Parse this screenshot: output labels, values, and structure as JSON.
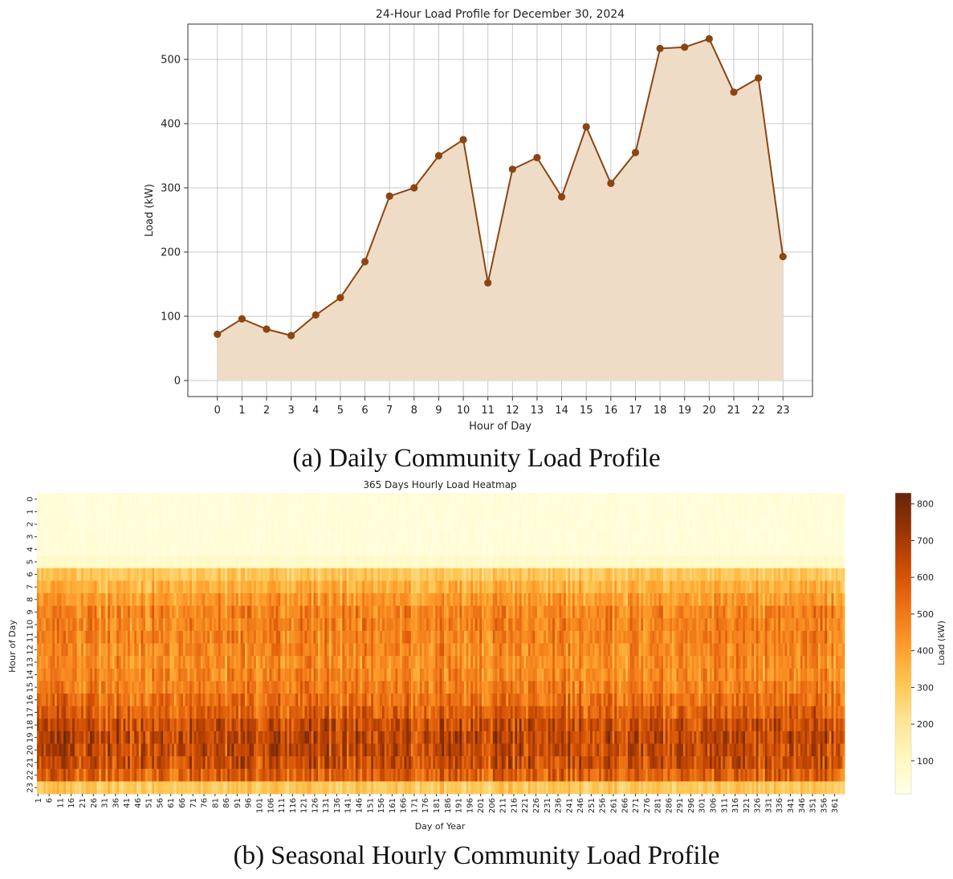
{
  "captions": {
    "a": "(a) Daily Community Load Profile",
    "b": "(b) Seasonal Hourly Community Load Profile"
  },
  "chart_data": [
    {
      "type": "area",
      "title": "24-Hour Load Profile for December 30, 2024",
      "xlabel": "Hour of Day",
      "ylabel": "Load (kW)",
      "x": [
        0,
        1,
        2,
        3,
        4,
        5,
        6,
        7,
        8,
        9,
        10,
        11,
        12,
        13,
        14,
        15,
        16,
        17,
        18,
        19,
        20,
        21,
        22,
        23
      ],
      "values": [
        72,
        96,
        80,
        70,
        102,
        129,
        185,
        287,
        300,
        350,
        375,
        152,
        329,
        347,
        286,
        395,
        307,
        355,
        517,
        519,
        532,
        449,
        471,
        193
      ],
      "yticks": [
        0,
        100,
        200,
        300,
        400,
        500
      ],
      "ylim": [
        -25,
        555
      ],
      "xlim": [
        -1.2,
        24.2
      ],
      "grid": true,
      "colors": {
        "line": "#8b4513",
        "fill": "#efdcc7",
        "marker": "#8b4513"
      }
    },
    {
      "type": "heatmap",
      "title": "365 Days Hourly Load Heatmap",
      "xlabel": "Day of Year",
      "ylabel": "Hour of Day",
      "days": 365,
      "hours": [
        0,
        1,
        2,
        3,
        4,
        5,
        6,
        7,
        8,
        9,
        10,
        11,
        12,
        13,
        14,
        15,
        16,
        17,
        18,
        19,
        20,
        21,
        22,
        23
      ],
      "xticks": [
        1,
        6,
        11,
        16,
        21,
        26,
        31,
        36,
        41,
        46,
        51,
        56,
        61,
        66,
        71,
        76,
        81,
        86,
        91,
        96,
        101,
        106,
        111,
        116,
        121,
        126,
        131,
        136,
        141,
        146,
        151,
        156,
        161,
        166,
        171,
        176,
        181,
        186,
        191,
        196,
        201,
        206,
        211,
        216,
        221,
        226,
        231,
        236,
        241,
        246,
        251,
        256,
        261,
        266,
        271,
        276,
        281,
        286,
        291,
        296,
        301,
        306,
        311,
        316,
        321,
        326,
        331,
        336,
        341,
        346,
        351,
        356,
        361
      ],
      "hourly_mean_kW": [
        40,
        40,
        40,
        40,
        40,
        75,
        300,
        360,
        420,
        470,
        470,
        470,
        460,
        450,
        460,
        480,
        520,
        560,
        620,
        640,
        640,
        620,
        560,
        300
      ],
      "colorbar": {
        "label": "Load (kW)",
        "ticks": [
          100,
          200,
          300,
          400,
          500,
          600,
          700,
          800
        ],
        "range": [
          10,
          830
        ],
        "colormap": "YlOrBr"
      }
    }
  ]
}
